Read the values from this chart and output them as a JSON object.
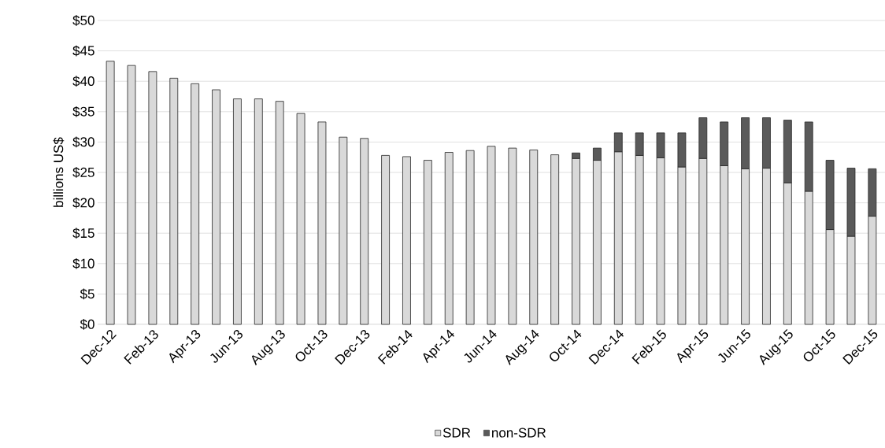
{
  "chart_data": {
    "type": "bar",
    "stacked": true,
    "ylabel": "billions US$",
    "categories": [
      "Dec-12",
      null,
      "Feb-13",
      null,
      "Apr-13",
      null,
      "Jun-13",
      null,
      "Aug-13",
      null,
      "Oct-13",
      null,
      "Dec-13",
      null,
      "Feb-14",
      null,
      "Apr-14",
      null,
      "Jun-14",
      null,
      "Aug-14",
      null,
      "Oct-14",
      null,
      "Dec-14",
      null,
      "Feb-15",
      null,
      "Apr-15",
      null,
      "Jun-15",
      null,
      "Aug-15",
      null,
      "Oct-15",
      null,
      "Dec-15"
    ],
    "series": [
      {
        "name": "SDR",
        "color": "#d9d9d9",
        "values": [
          43.3,
          42.6,
          41.6,
          40.5,
          39.6,
          38.6,
          37.1,
          37.1,
          36.7,
          34.7,
          33.3,
          30.8,
          30.6,
          27.8,
          27.6,
          27.0,
          28.3,
          28.6,
          29.3,
          29.0,
          28.7,
          27.9,
          27.3,
          27.0,
          28.4,
          27.8,
          27.4,
          25.9,
          27.3,
          26.1,
          25.6,
          25.7,
          23.3,
          21.9,
          15.6,
          14.5,
          17.8
        ]
      },
      {
        "name": "non-SDR",
        "color": "#5a5a5a",
        "values": [
          null,
          null,
          null,
          null,
          null,
          null,
          null,
          null,
          null,
          null,
          null,
          null,
          null,
          null,
          null,
          null,
          null,
          null,
          null,
          null,
          null,
          null,
          0.9,
          2.0,
          3.1,
          3.7,
          4.1,
          5.6,
          6.7,
          7.2,
          8.4,
          8.3,
          10.3,
          11.4,
          11.4,
          11.2,
          7.8
        ]
      }
    ],
    "ylim": [
      0,
      50
    ],
    "yticks": [
      {
        "value": 0,
        "label": "$0"
      },
      {
        "value": 5,
        "label": "$5"
      },
      {
        "value": 10,
        "label": "$10"
      },
      {
        "value": 15,
        "label": "$15"
      },
      {
        "value": 20,
        "label": "$20"
      },
      {
        "value": 25,
        "label": "$25"
      },
      {
        "value": 30,
        "label": "$30"
      },
      {
        "value": 35,
        "label": "$35"
      },
      {
        "value": 40,
        "label": "$40"
      },
      {
        "value": 45,
        "label": "$45"
      },
      {
        "value": 50,
        "label": "$50"
      }
    ],
    "grid": "y",
    "legend": "bottom"
  }
}
